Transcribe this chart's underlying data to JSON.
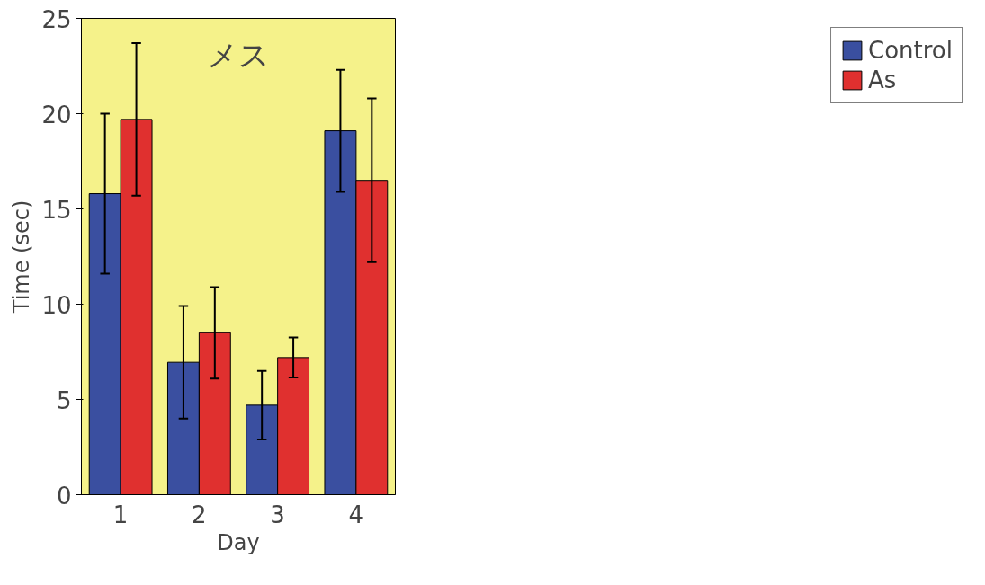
{
  "chart_data": {
    "type": "bar",
    "title": "メス",
    "xlabel": "Day",
    "ylabel": "Time (sec)",
    "categories": [
      "1",
      "2",
      "3",
      "4"
    ],
    "series": [
      {
        "name": "Control",
        "color": "#3a4fa0",
        "values": [
          15.8,
          6.95,
          4.7,
          19.1
        ],
        "errors": [
          4.2,
          2.95,
          1.8,
          3.2
        ]
      },
      {
        "name": "As",
        "color": "#e0302f",
        "values": [
          19.7,
          8.5,
          7.2,
          16.5
        ],
        "errors": [
          4.0,
          2.4,
          1.05,
          4.3
        ]
      }
    ],
    "ylim": [
      0,
      25
    ],
    "yticks": [
      0,
      5,
      10,
      15,
      20,
      25
    ],
    "grid": false,
    "legend": "right"
  }
}
